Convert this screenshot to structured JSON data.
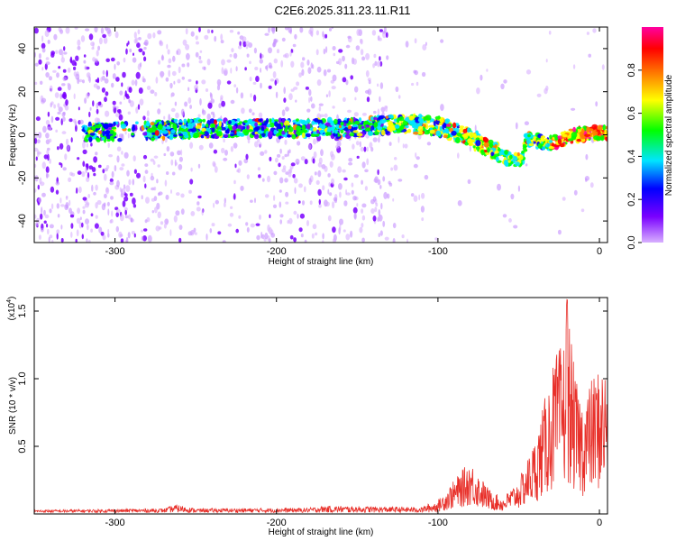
{
  "title": "C2E6.2025.311.23.11.R11",
  "chart_data": [
    {
      "type": "heatmap",
      "xlabel": "Height of straight line (km)",
      "ylabel": "Frequency (Hz)",
      "xlim": [
        -350,
        5
      ],
      "ylim": [
        -50,
        50
      ],
      "x_ticks": [
        -300,
        -200,
        -100,
        0
      ],
      "x_tick_labels": [
        "-300",
        "-200",
        "-100",
        "0"
      ],
      "y_ticks": [
        -40,
        -20,
        0,
        20,
        40
      ],
      "y_tick_labels": [
        "-40",
        "-20",
        "0",
        "20",
        "40"
      ],
      "colorbar": {
        "label": "Normalized spectral amplitude",
        "range": [
          0,
          1
        ],
        "ticks": [
          0.0,
          0.2,
          0.4,
          0.6,
          0.8
        ],
        "tick_labels": [
          "0.0",
          "0.2",
          "0.4",
          "0.6",
          "0.8"
        ],
        "colors": [
          "#d8b0ff",
          "#7a00ff",
          "#0000ff",
          "#00e5ff",
          "#00ff00",
          "#ffff00",
          "#ff8000",
          "#ff0000",
          "#ff00a0"
        ]
      },
      "ridge": [
        {
          "x": -315,
          "freq": 1
        },
        {
          "x": -280,
          "freq": 2
        },
        {
          "x": -250,
          "freq": 3
        },
        {
          "x": -200,
          "freq": 3
        },
        {
          "x": -160,
          "freq": 3
        },
        {
          "x": -120,
          "freq": 5
        },
        {
          "x": -100,
          "freq": 4
        },
        {
          "x": -85,
          "freq": 0
        },
        {
          "x": -70,
          "freq": -5
        },
        {
          "x": -55,
          "freq": -12
        },
        {
          "x": -48,
          "freq": -12
        },
        {
          "x": -45,
          "freq": -2
        },
        {
          "x": -30,
          "freq": -4
        },
        {
          "x": -15,
          "freq": 0
        },
        {
          "x": 0,
          "freq": 1
        },
        {
          "x": 5,
          "freq": 1
        }
      ]
    },
    {
      "type": "line",
      "xlabel": "Height of straight line (km)",
      "ylabel": "SNR (10 * v/v)",
      "y_scale_label": "(x10",
      "y_scale_exponent": "4",
      "y_scale_suffix": ")",
      "xlim": [
        -350,
        5
      ],
      "ylim": [
        0,
        1.6
      ],
      "x_ticks": [
        -300,
        -200,
        -100,
        0
      ],
      "x_tick_labels": [
        "-300",
        "-200",
        "-100",
        "0"
      ],
      "y_ticks": [
        0.5,
        1.0,
        1.5
      ],
      "y_tick_labels": [
        "0.5",
        "1.0",
        "1.5"
      ],
      "color": "#e8302a",
      "envelope": [
        {
          "x": -350,
          "y": 0.02
        },
        {
          "x": -270,
          "y": 0.03
        },
        {
          "x": -262,
          "y": 0.06
        },
        {
          "x": -250,
          "y": 0.03
        },
        {
          "x": -180,
          "y": 0.035
        },
        {
          "x": -170,
          "y": 0.05
        },
        {
          "x": -110,
          "y": 0.04
        },
        {
          "x": -100,
          "y": 0.1
        },
        {
          "x": -90,
          "y": 0.25
        },
        {
          "x": -80,
          "y": 0.4
        },
        {
          "x": -75,
          "y": 0.3
        },
        {
          "x": -68,
          "y": 0.18
        },
        {
          "x": -60,
          "y": 0.12
        },
        {
          "x": -50,
          "y": 0.25
        },
        {
          "x": -40,
          "y": 0.55
        },
        {
          "x": -33,
          "y": 0.9
        },
        {
          "x": -28,
          "y": 1.15
        },
        {
          "x": -22,
          "y": 1.3
        },
        {
          "x": -20,
          "y": 1.6
        },
        {
          "x": -15,
          "y": 1.0
        },
        {
          "x": -10,
          "y": 0.85
        },
        {
          "x": -5,
          "y": 1.0
        },
        {
          "x": 0,
          "y": 1.1
        },
        {
          "x": 5,
          "y": 1.1
        }
      ]
    }
  ]
}
